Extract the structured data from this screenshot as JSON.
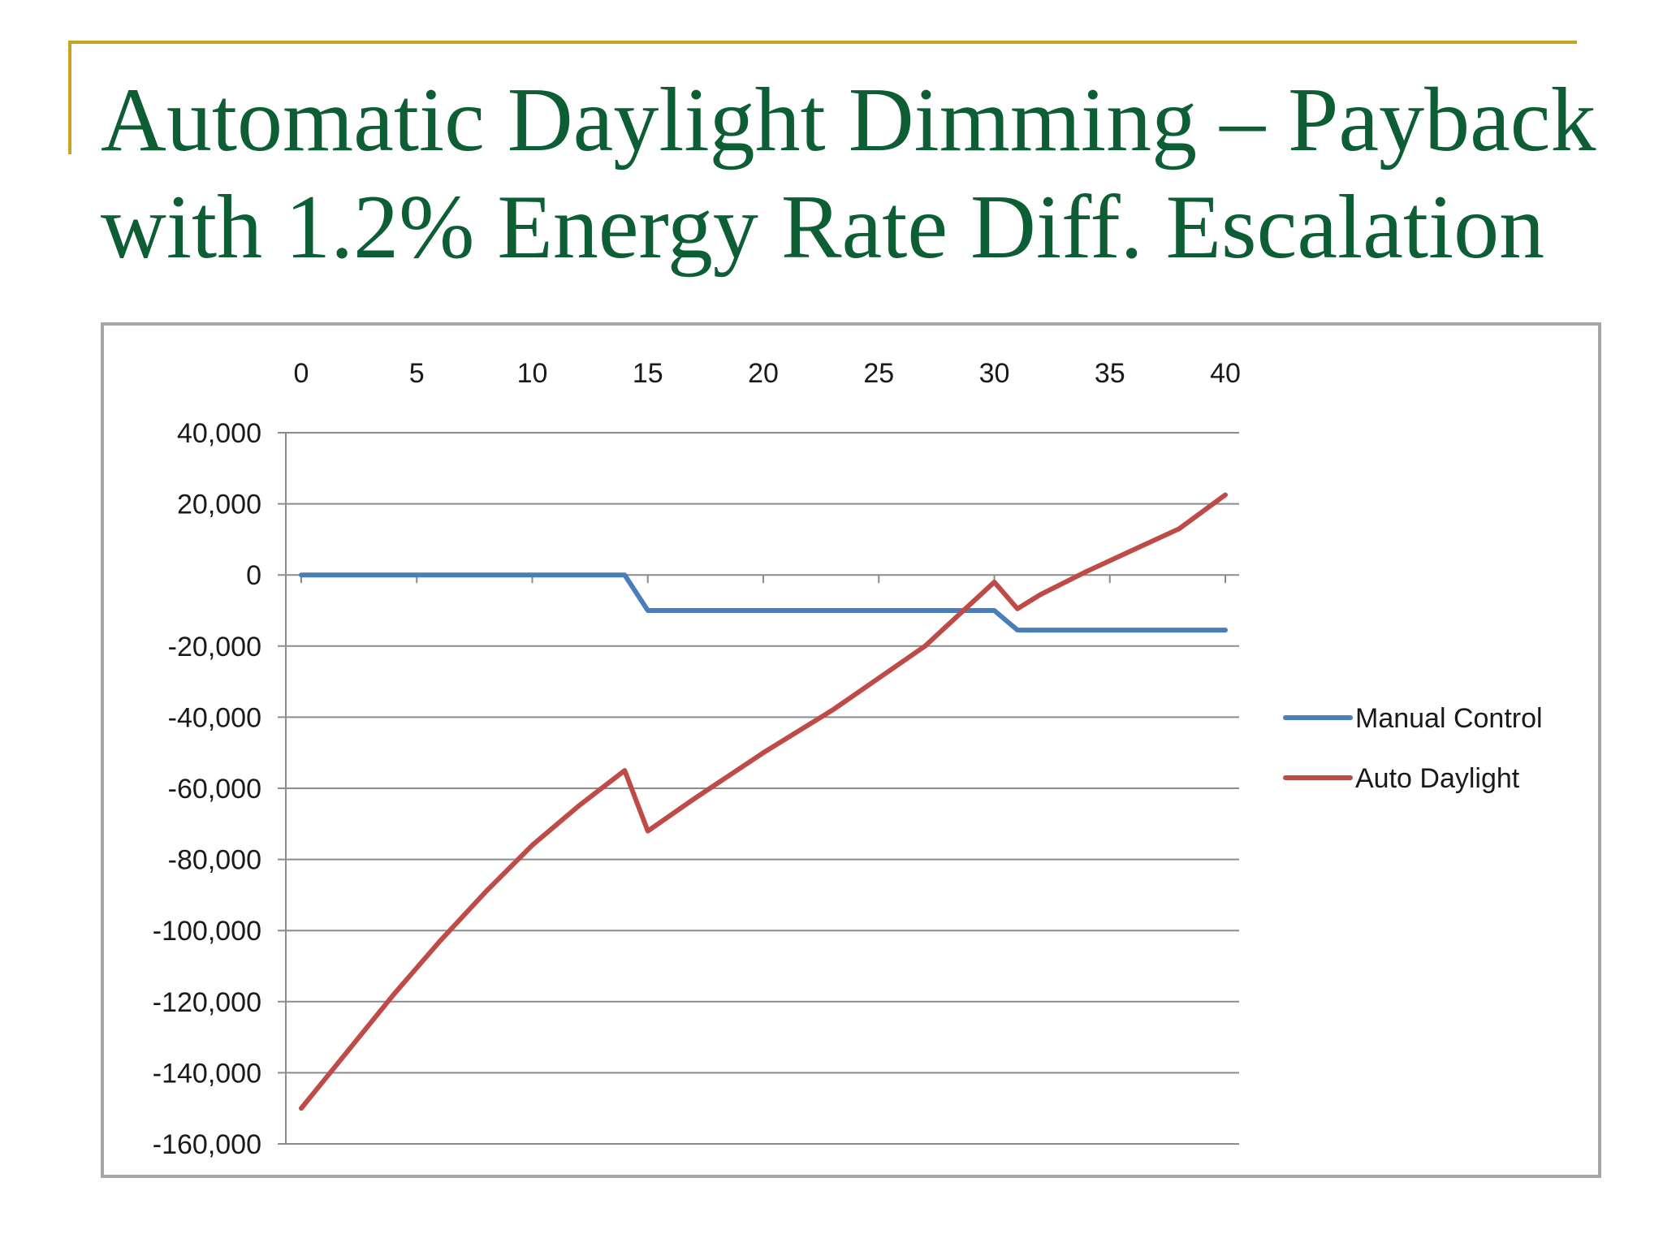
{
  "slide": {
    "title_line1": "Automatic Daylight Dimming – Payback",
    "title_line2": "with 1.2% Energy Rate Diff. Escalation"
  },
  "colors": {
    "accent": "#c9a21f",
    "title": "#0e5e35",
    "manual": "#4a7ebb",
    "auto": "#be4b48",
    "grid": "#8c8c8c",
    "frame": "#a6a6a6"
  },
  "chart_data": {
    "type": "line",
    "xlabel": "",
    "ylabel": "",
    "xlim": [
      0,
      40
    ],
    "ylim": [
      -160000,
      40000
    ],
    "x_ticks": [
      0,
      5,
      10,
      15,
      20,
      25,
      30,
      35,
      40
    ],
    "y_ticks": [
      40000,
      20000,
      0,
      -20000,
      -40000,
      -60000,
      -80000,
      -100000,
      -120000,
      -140000,
      -160000
    ],
    "x_axis_position": "top",
    "grid": true,
    "legend_position": "right",
    "series": [
      {
        "name": "Manual Control",
        "color": "#4a7ebb",
        "x": [
          0,
          14,
          15,
          30,
          31,
          40
        ],
        "y": [
          0,
          0,
          -10000,
          -10000,
          -15500,
          -15500
        ]
      },
      {
        "name": "Auto Daylight",
        "color": "#be4b48",
        "x": [
          0,
          2,
          4,
          6,
          8,
          10,
          12,
          14,
          15,
          17,
          20,
          23,
          25,
          27,
          28,
          30,
          31,
          32,
          34,
          36,
          38,
          40
        ],
        "y": [
          -150000,
          -134000,
          -118000,
          -103000,
          -89000,
          -76000,
          -65000,
          -55000,
          -72000,
          -63000,
          -50000,
          -38000,
          -29000,
          -20000,
          -14000,
          -2000,
          -9500,
          -5500,
          1000,
          7000,
          13000,
          22500
        ]
      }
    ]
  }
}
